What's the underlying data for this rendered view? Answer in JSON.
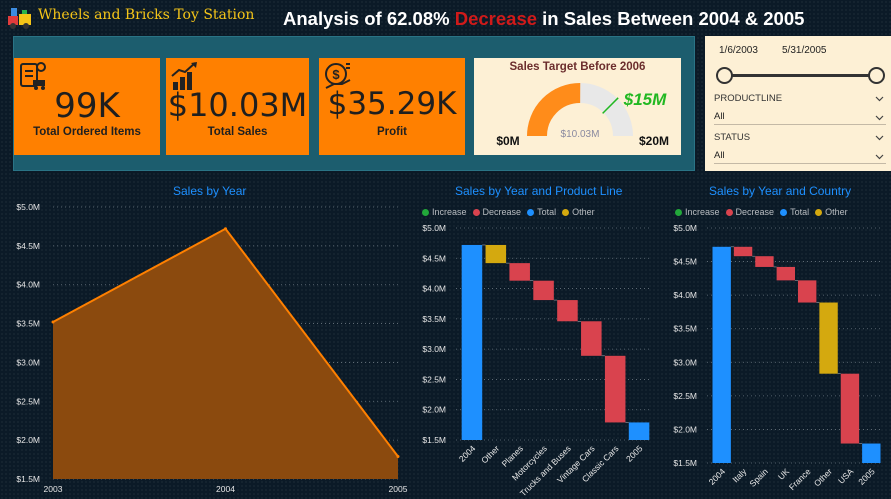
{
  "header": {
    "brand": "Wheels and Bricks Toy Station",
    "headline_prefix": "Analysis of 62.08% ",
    "headline_highlight": "Decrease",
    "headline_suffix": " in Sales Between 2004 & 2005"
  },
  "kpis": [
    {
      "value": "99K",
      "label": "Total Ordered Items",
      "icon": "clipboard-truck-icon"
    },
    {
      "value": "$10.03M",
      "label": "Total Sales",
      "icon": "money-growth-icon"
    },
    {
      "value": "$35.29K",
      "label": "Profit",
      "icon": "profit-dollar-icon"
    }
  ],
  "gauge": {
    "title": "Sales Target Before 2006",
    "min_label": "$0M",
    "max_label": "$20M",
    "value_label": "$10.03M",
    "target_label": "$15M",
    "min": 0,
    "max": 20,
    "value": 10.03,
    "target": 15,
    "fill_color": "#ff8c1a",
    "track_color": "#e8e8e8",
    "target_color": "#22b822"
  },
  "slicer": {
    "start_date": "1/6/2003",
    "end_date": "5/31/2005",
    "productline": {
      "title": "PRODUCTLINE",
      "selected": "All"
    },
    "status": {
      "title": "STATUS",
      "selected": "All"
    }
  },
  "colors": {
    "increase": "#22a83a",
    "decrease": "#d9434e",
    "total": "#1e90ff",
    "other": "#d4a90f",
    "area_line": "#ff8000",
    "area_fill": "#8b4a0e"
  },
  "chart_data": [
    {
      "type": "area",
      "title": "Sales by Year",
      "x": [
        "2003",
        "2004",
        "2005"
      ],
      "values": [
        3.52,
        4.72,
        1.79
      ],
      "yticks": [
        "$1.5M",
        "$2.0M",
        "$2.5M",
        "$3.0M",
        "$3.5M",
        "$4.0M",
        "$4.5M",
        "$5.0M"
      ],
      "ylim": [
        1.5,
        5.0
      ]
    },
    {
      "type": "waterfall",
      "title": "Sales by Year and Product Line",
      "legend": [
        "Increase",
        "Decrease",
        "Total",
        "Other"
      ],
      "categories": [
        "2004",
        "Other",
        "Planes",
        "Motorcycles",
        "Trucks and Buses",
        "Vintage Cars",
        "Classic Cars",
        "2005"
      ],
      "bars": [
        {
          "kind": "total",
          "start": 1.5,
          "end": 4.72
        },
        {
          "kind": "other",
          "start": 4.72,
          "end": 4.42
        },
        {
          "kind": "decrease",
          "start": 4.42,
          "end": 4.13
        },
        {
          "kind": "decrease",
          "start": 4.13,
          "end": 3.81
        },
        {
          "kind": "decrease",
          "start": 3.81,
          "end": 3.46
        },
        {
          "kind": "decrease",
          "start": 3.46,
          "end": 2.89
        },
        {
          "kind": "decrease",
          "start": 2.89,
          "end": 1.79
        },
        {
          "kind": "total",
          "start": 1.5,
          "end": 1.79
        }
      ],
      "yticks": [
        "$1.5M",
        "$2.0M",
        "$2.5M",
        "$3.0M",
        "$3.5M",
        "$4.0M",
        "$4.5M",
        "$5.0M"
      ],
      "ylim": [
        1.5,
        5.0
      ]
    },
    {
      "type": "waterfall",
      "title": "Sales by Year and Country",
      "legend": [
        "Increase",
        "Decrease",
        "Total",
        "Other"
      ],
      "categories": [
        "2004",
        "Italy",
        "Spain",
        "UK",
        "France",
        "Other",
        "USA",
        "2005"
      ],
      "bars": [
        {
          "kind": "total",
          "start": 1.5,
          "end": 4.72
        },
        {
          "kind": "decrease",
          "start": 4.72,
          "end": 4.58
        },
        {
          "kind": "decrease",
          "start": 4.58,
          "end": 4.42
        },
        {
          "kind": "decrease",
          "start": 4.42,
          "end": 4.22
        },
        {
          "kind": "decrease",
          "start": 4.22,
          "end": 3.89
        },
        {
          "kind": "other",
          "start": 3.89,
          "end": 2.83
        },
        {
          "kind": "decrease",
          "start": 2.83,
          "end": 1.79
        },
        {
          "kind": "total",
          "start": 1.5,
          "end": 1.79
        }
      ],
      "yticks": [
        "$1.5M",
        "$2.0M",
        "$2.5M",
        "$3.0M",
        "$3.5M",
        "$4.0M",
        "$4.5M",
        "$5.0M"
      ],
      "ylim": [
        1.5,
        5.0
      ]
    }
  ]
}
